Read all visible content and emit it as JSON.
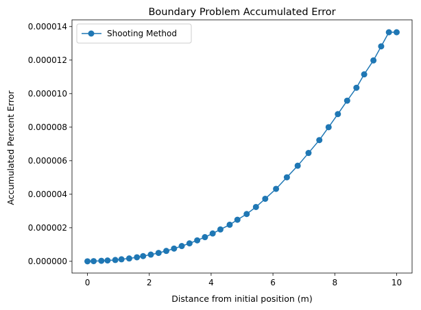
{
  "chart_data": {
    "type": "line",
    "title": "Boundary Problem Accumulated Error",
    "xlabel": "Distance from initial position (m)",
    "ylabel": "Accumulated Percent Error",
    "xlim": [
      -0.5,
      10.5
    ],
    "ylim": [
      -7e-07,
      1.44e-05
    ],
    "xticks": [
      0,
      2,
      4,
      6,
      8,
      10
    ],
    "xtick_labels": [
      "0",
      "2",
      "4",
      "6",
      "8",
      "10"
    ],
    "yticks": [
      0,
      2e-06,
      4e-06,
      6e-06,
      8e-06,
      1e-05,
      1.2e-05,
      1.4e-05
    ],
    "ytick_labels": [
      "0.000000",
      "0.000002",
      "0.000004",
      "0.000006",
      "0.000008",
      "0.000010",
      "0.000012",
      "0.000014"
    ],
    "grid": false,
    "legend_position": "top-left",
    "series": [
      {
        "name": "Shooting Method",
        "color": "#1f77b4",
        "marker": "circle",
        "x": [
          0.0,
          0.2,
          0.45,
          0.65,
          0.9,
          1.1,
          1.35,
          1.6,
          1.8,
          2.05,
          2.3,
          2.55,
          2.8,
          3.05,
          3.3,
          3.55,
          3.8,
          4.05,
          4.3,
          4.6,
          4.85,
          5.15,
          5.45,
          5.75,
          6.1,
          6.45,
          6.8,
          7.15,
          7.5,
          7.8,
          8.1,
          8.4,
          8.7,
          8.95,
          9.25,
          9.5,
          9.75,
          10.0
        ],
        "y": [
          0.0,
          1e-08,
          3e-08,
          5e-08,
          8e-08,
          1.2e-07,
          1.7e-07,
          2.4e-07,
          3.1e-07,
          4e-07,
          5e-07,
          6.2e-07,
          7.6e-07,
          9.1e-07,
          1.07e-06,
          1.25e-06,
          1.44e-06,
          1.66e-06,
          1.9e-06,
          2.18e-06,
          2.48e-06,
          2.82e-06,
          3.24e-06,
          3.73e-06,
          4.32e-06,
          5.01e-06,
          5.7e-06,
          6.46e-06,
          7.23e-06,
          8e-06,
          8.78e-06,
          9.58e-06,
          1.035e-05,
          1.115e-05,
          1.198e-05,
          1.282e-05,
          1.366e-05,
          1.366e-05
        ]
      }
    ]
  }
}
